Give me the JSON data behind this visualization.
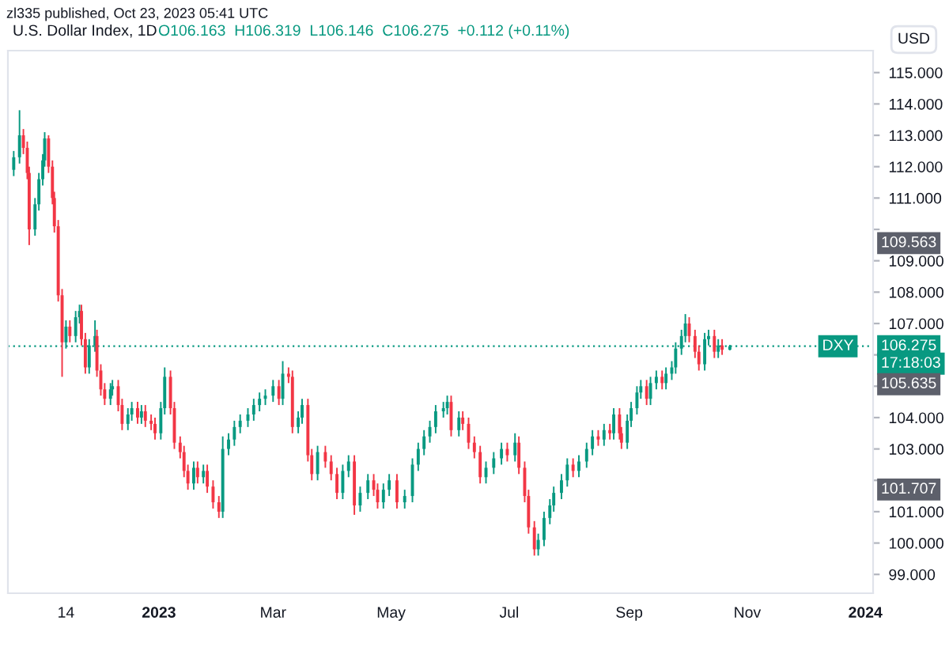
{
  "chart_data": {
    "type": "candlestick",
    "title": "U.S. Dollar Index, 1D",
    "subtitle": "O106.163  H106.319  L106.146  C106.275  +0.112 (+0.11%)",
    "x": [
      "2022-10-18",
      "2022-10-21",
      "2022-10-23",
      "2022-10-25",
      "2022-10-26",
      "2022-10-29",
      "2022-10-31",
      "2022-11-02",
      "2022-11-03",
      "2022-11-05",
      "2022-11-07",
      "2022-11-08",
      "2022-11-10",
      "2022-11-12",
      "2022-11-14",
      "2022-11-16",
      "2022-11-19",
      "2022-11-21",
      "2022-11-22",
      "2022-11-24",
      "2022-11-26",
      "2022-11-29",
      "2022-11-30",
      "2022-12-02",
      "2022-12-04",
      "2022-12-07",
      "2022-12-08",
      "2022-12-11",
      "2022-12-13",
      "2022-12-16",
      "2022-12-18",
      "2022-12-21",
      "2022-12-23",
      "2022-12-25",
      "2022-12-28",
      "2022-12-30",
      "2023-01-02",
      "2023-01-04",
      "2023-01-07",
      "2023-01-09",
      "2023-01-12",
      "2023-01-14",
      "2023-01-16",
      "2023-01-19",
      "2023-01-21",
      "2023-01-24",
      "2023-01-26",
      "2023-01-29",
      "2023-02-01",
      "2023-02-03",
      "2023-02-06",
      "2023-02-09",
      "2023-02-12",
      "2023-02-16",
      "2023-02-19",
      "2023-02-22",
      "2023-02-25",
      "2023-03-01",
      "2023-03-04",
      "2023-03-06",
      "2023-03-09",
      "2023-03-11",
      "2023-03-14",
      "2023-03-16",
      "2023-03-19",
      "2023-03-21",
      "2023-03-24",
      "2023-03-28",
      "2023-03-31",
      "2023-04-03",
      "2023-04-06",
      "2023-04-09",
      "2023-04-12",
      "2023-04-15",
      "2023-04-19",
      "2023-04-22",
      "2023-04-24",
      "2023-04-27",
      "2023-04-30",
      "2023-05-04",
      "2023-05-08",
      "2023-05-12",
      "2023-05-15",
      "2023-05-18",
      "2023-05-21",
      "2023-05-24",
      "2023-05-28",
      "2023-05-30",
      "2023-06-01",
      "2023-06-05",
      "2023-06-07",
      "2023-06-10",
      "2023-06-13",
      "2023-06-16",
      "2023-06-19",
      "2023-06-23",
      "2023-06-27",
      "2023-06-30",
      "2023-07-04",
      "2023-07-06",
      "2023-07-09",
      "2023-07-11",
      "2023-07-14",
      "2023-07-16",
      "2023-07-19",
      "2023-07-22",
      "2023-07-24",
      "2023-07-28",
      "2023-07-31",
      "2023-08-03",
      "2023-08-06",
      "2023-08-10",
      "2023-08-13",
      "2023-08-16",
      "2023-08-19",
      "2023-08-22",
      "2023-08-24",
      "2023-08-27",
      "2023-08-28",
      "2023-08-31",
      "2023-09-02",
      "2023-09-05",
      "2023-09-07",
      "2023-09-10",
      "2023-09-12",
      "2023-09-15",
      "2023-09-18",
      "2023-09-20",
      "2023-09-23",
      "2023-09-25",
      "2023-09-28",
      "2023-09-30",
      "2023-10-02",
      "2023-10-05",
      "2023-10-07",
      "2023-10-10",
      "2023-10-12",
      "2023-10-15",
      "2023-10-17",
      "2023-10-19",
      "2023-10-23"
    ],
    "ohlc": [
      [
        111.9,
        112.5,
        111.7,
        112.3
      ],
      [
        112.3,
        113.8,
        112.1,
        113.0
      ],
      [
        113.0,
        113.2,
        112.4,
        112.6
      ],
      [
        112.6,
        112.8,
        111.6,
        111.8
      ],
      [
        111.8,
        112.0,
        109.5,
        110.0
      ],
      [
        110.0,
        111.0,
        109.8,
        110.8
      ],
      [
        110.8,
        111.8,
        110.6,
        111.6
      ],
      [
        111.6,
        112.4,
        111.4,
        112.2
      ],
      [
        112.2,
        113.1,
        112.0,
        112.9
      ],
      [
        112.9,
        113.0,
        111.8,
        112.0
      ],
      [
        112.0,
        112.2,
        110.8,
        111.0
      ],
      [
        111.0,
        111.2,
        109.9,
        110.1
      ],
      [
        110.1,
        110.3,
        107.7,
        107.9
      ],
      [
        107.9,
        108.1,
        105.3,
        106.4
      ],
      [
        106.4,
        107.1,
        106.2,
        106.9
      ],
      [
        106.9,
        107.1,
        106.4,
        106.6
      ],
      [
        106.6,
        107.4,
        106.4,
        107.2
      ],
      [
        107.2,
        107.6,
        107.0,
        107.4
      ],
      [
        107.4,
        107.6,
        106.3,
        106.5
      ],
      [
        106.5,
        106.7,
        105.4,
        105.6
      ],
      [
        105.6,
        106.5,
        105.4,
        106.3
      ],
      [
        106.3,
        107.1,
        106.1,
        106.6
      ],
      [
        106.6,
        106.8,
        105.3,
        105.5
      ],
      [
        105.5,
        105.7,
        104.7,
        104.9
      ],
      [
        104.9,
        105.1,
        104.4,
        104.6
      ],
      [
        104.6,
        105.1,
        104.4,
        104.9
      ],
      [
        104.9,
        105.2,
        104.7,
        105.0
      ],
      [
        105.0,
        105.2,
        104.2,
        104.4
      ],
      [
        104.4,
        104.6,
        103.6,
        103.8
      ],
      [
        103.8,
        104.3,
        103.6,
        104.1
      ],
      [
        104.1,
        104.5,
        103.9,
        104.3
      ],
      [
        104.3,
        104.5,
        103.8,
        104.0
      ],
      [
        104.0,
        104.4,
        103.8,
        104.2
      ],
      [
        104.2,
        104.4,
        103.7,
        103.9
      ],
      [
        103.9,
        104.1,
        103.6,
        103.8
      ],
      [
        103.8,
        104.0,
        103.3,
        103.5
      ],
      [
        103.5,
        104.5,
        103.3,
        104.3
      ],
      [
        104.3,
        105.6,
        104.1,
        105.3
      ],
      [
        105.3,
        105.5,
        104.1,
        104.3
      ],
      [
        104.3,
        104.5,
        103.0,
        103.2
      ],
      [
        103.2,
        103.4,
        102.7,
        102.9
      ],
      [
        102.9,
        103.1,
        102.1,
        102.3
      ],
      [
        102.3,
        102.5,
        101.7,
        101.9
      ],
      [
        101.9,
        102.6,
        101.7,
        102.4
      ],
      [
        102.4,
        102.6,
        101.9,
        102.1
      ],
      [
        102.1,
        102.5,
        101.9,
        102.3
      ],
      [
        102.3,
        102.5,
        101.6,
        101.8
      ],
      [
        101.8,
        102.0,
        101.1,
        101.3
      ],
      [
        101.3,
        101.5,
        100.8,
        101.0
      ],
      [
        101.0,
        103.4,
        100.8,
        103.0
      ],
      [
        103.0,
        103.5,
        102.8,
        103.3
      ],
      [
        103.3,
        103.9,
        103.1,
        103.7
      ],
      [
        103.7,
        104.1,
        103.5,
        103.9
      ],
      [
        103.9,
        104.3,
        103.7,
        104.1
      ],
      [
        104.1,
        104.6,
        103.9,
        104.4
      ],
      [
        104.4,
        104.8,
        104.2,
        104.6
      ],
      [
        104.6,
        104.9,
        104.4,
        104.7
      ],
      [
        104.7,
        105.2,
        104.5,
        105.0
      ],
      [
        105.0,
        105.2,
        104.4,
        104.6
      ],
      [
        104.6,
        105.8,
        104.4,
        105.4
      ],
      [
        105.4,
        105.6,
        105.1,
        105.3
      ],
      [
        105.3,
        105.5,
        103.5,
        103.7
      ],
      [
        103.7,
        104.2,
        103.5,
        104.0
      ],
      [
        104.0,
        104.6,
        103.8,
        104.4
      ],
      [
        104.4,
        104.6,
        102.6,
        102.8
      ],
      [
        102.8,
        103.0,
        102.0,
        102.2
      ],
      [
        102.2,
        103.1,
        102.0,
        102.9
      ],
      [
        102.9,
        103.1,
        102.4,
        102.6
      ],
      [
        102.6,
        102.8,
        102.0,
        102.2
      ],
      [
        102.2,
        102.4,
        101.4,
        101.6
      ],
      [
        101.6,
        102.5,
        101.4,
        102.3
      ],
      [
        102.3,
        102.8,
        102.1,
        102.6
      ],
      [
        102.6,
        102.8,
        100.9,
        101.2
      ],
      [
        101.2,
        101.8,
        101.0,
        101.6
      ],
      [
        101.6,
        102.2,
        101.4,
        102.0
      ],
      [
        102.0,
        102.2,
        101.5,
        101.7
      ],
      [
        101.7,
        101.9,
        101.1,
        101.3
      ],
      [
        101.3,
        101.9,
        101.1,
        101.7
      ],
      [
        101.7,
        102.2,
        101.5,
        102.0
      ],
      [
        102.0,
        102.2,
        101.1,
        101.3
      ],
      [
        101.3,
        101.7,
        101.1,
        101.5
      ],
      [
        101.5,
        102.7,
        101.3,
        102.5
      ],
      [
        102.5,
        103.2,
        102.3,
        103.0
      ],
      [
        103.0,
        103.6,
        102.8,
        103.4
      ],
      [
        103.4,
        103.9,
        103.2,
        103.7
      ],
      [
        103.7,
        104.4,
        103.5,
        104.2
      ],
      [
        104.2,
        104.5,
        104.0,
        104.3
      ],
      [
        104.3,
        104.7,
        104.1,
        104.5
      ],
      [
        104.5,
        104.7,
        103.4,
        103.6
      ],
      [
        103.6,
        104.2,
        103.4,
        104.0
      ],
      [
        104.0,
        104.2,
        103.6,
        103.8
      ],
      [
        103.8,
        104.0,
        103.0,
        103.2
      ],
      [
        103.2,
        103.4,
        102.7,
        102.9
      ],
      [
        102.9,
        103.1,
        101.9,
        102.1
      ],
      [
        102.1,
        102.6,
        101.9,
        102.4
      ],
      [
        102.4,
        102.9,
        102.2,
        102.7
      ],
      [
        102.7,
        103.2,
        102.5,
        103.0
      ],
      [
        103.0,
        103.2,
        102.6,
        102.8
      ],
      [
        102.8,
        103.5,
        102.6,
        103.2
      ],
      [
        103.2,
        103.4,
        102.2,
        102.4
      ],
      [
        102.4,
        102.6,
        101.3,
        101.5
      ],
      [
        101.5,
        101.7,
        100.3,
        100.5
      ],
      [
        100.5,
        100.7,
        99.6,
        99.8
      ],
      [
        99.8,
        100.3,
        99.6,
        100.1
      ],
      [
        100.1,
        101.0,
        99.9,
        100.8
      ],
      [
        100.8,
        101.4,
        100.6,
        101.2
      ],
      [
        101.2,
        101.8,
        101.0,
        101.6
      ],
      [
        101.6,
        102.2,
        101.4,
        102.0
      ],
      [
        102.0,
        102.7,
        101.8,
        102.5
      ],
      [
        102.5,
        102.7,
        102.1,
        102.3
      ],
      [
        102.3,
        102.8,
        102.1,
        102.6
      ],
      [
        102.6,
        103.2,
        102.4,
        103.0
      ],
      [
        103.0,
        103.6,
        102.8,
        103.4
      ],
      [
        103.4,
        103.6,
        103.1,
        103.3
      ],
      [
        103.3,
        103.8,
        103.1,
        103.6
      ],
      [
        103.6,
        103.8,
        103.3,
        103.5
      ],
      [
        103.5,
        104.3,
        103.3,
        104.1
      ],
      [
        104.1,
        104.3,
        103.3,
        103.5
      ],
      [
        103.5,
        103.7,
        103.0,
        103.2
      ],
      [
        103.2,
        104.1,
        103.0,
        103.9
      ],
      [
        103.9,
        104.5,
        103.7,
        104.3
      ],
      [
        104.3,
        105.0,
        104.1,
        104.8
      ],
      [
        104.8,
        105.2,
        104.6,
        105.0
      ],
      [
        105.0,
        105.2,
        104.4,
        104.6
      ],
      [
        104.6,
        105.3,
        104.4,
        105.1
      ],
      [
        105.1,
        105.5,
        104.9,
        105.3
      ],
      [
        105.3,
        105.5,
        104.9,
        105.1
      ],
      [
        105.1,
        105.6,
        104.9,
        105.4
      ],
      [
        105.4,
        105.8,
        105.2,
        105.6
      ],
      [
        105.6,
        106.4,
        105.4,
        106.2
      ],
      [
        106.2,
        106.8,
        106.0,
        106.6
      ],
      [
        106.6,
        107.3,
        106.4,
        107.0
      ],
      [
        107.0,
        107.2,
        106.4,
        106.6
      ],
      [
        106.6,
        106.8,
        105.9,
        106.1
      ],
      [
        106.1,
        106.3,
        105.5,
        105.7
      ],
      [
        105.7,
        106.7,
        105.5,
        106.5
      ],
      [
        106.5,
        106.8,
        106.3,
        106.6
      ],
      [
        106.6,
        106.8,
        105.9,
        106.1
      ],
      [
        106.1,
        106.5,
        105.9,
        106.3
      ],
      [
        106.3,
        106.5,
        106.0,
        106.163
      ],
      [
        106.163,
        106.319,
        106.146,
        106.275
      ]
    ],
    "xlim": [
      "2022-10-15",
      "2024-01-05"
    ],
    "xticks": [
      {
        "value": "2022-11-14",
        "label": "14"
      },
      {
        "value": "2023-01-01",
        "label": "2023"
      },
      {
        "value": "2023-03-01",
        "label": "Mar"
      },
      {
        "value": "2023-05-01",
        "label": "May"
      },
      {
        "value": "2023-07-01",
        "label": "Jul"
      },
      {
        "value": "2023-09-01",
        "label": "Sep"
      },
      {
        "value": "2023-11-01",
        "label": "Nov"
      },
      {
        "value": "2024-01-01",
        "label": "2024"
      }
    ],
    "ylim": [
      98.4,
      115.7
    ],
    "yticks": [
      {
        "value": 99,
        "label": "99.000"
      },
      {
        "value": 100,
        "label": "100.000"
      },
      {
        "value": 101,
        "label": "101.000"
      },
      {
        "value": 102,
        "label": null
      },
      {
        "value": 103,
        "label": "103.000"
      },
      {
        "value": 104,
        "label": "104.000"
      },
      {
        "value": 105,
        "label": null
      },
      {
        "value": 106,
        "label": null
      },
      {
        "value": 107,
        "label": "107.000"
      },
      {
        "value": 108,
        "label": "108.000"
      },
      {
        "value": 109,
        "label": "109.000"
      },
      {
        "value": 110,
        "label": null
      },
      {
        "value": 111,
        "label": "111.000"
      },
      {
        "value": 112,
        "label": "112.000"
      },
      {
        "value": 113,
        "label": "113.000"
      },
      {
        "value": 114,
        "label": "114.000"
      },
      {
        "value": 115,
        "label": "115.000"
      }
    ],
    "ref_lines": [
      {
        "axis": "y",
        "value": 106.275,
        "label": "106.275",
        "color": "#089981",
        "line_style": "dotted"
      }
    ],
    "annotations": [
      "zl335 published, Oct 23, 2023 05:41 UTC",
      "USD",
      "17:18:03",
      {
        "text": "DXY",
        "x": "2023-12-26",
        "y": 106.275
      },
      {
        "text": "109.563",
        "y": 109.563
      },
      {
        "text": "105.635",
        "y": 105.635
      },
      {
        "text": "101.707",
        "y": 101.707
      }
    ],
    "grid": false,
    "legend": false
  }
}
